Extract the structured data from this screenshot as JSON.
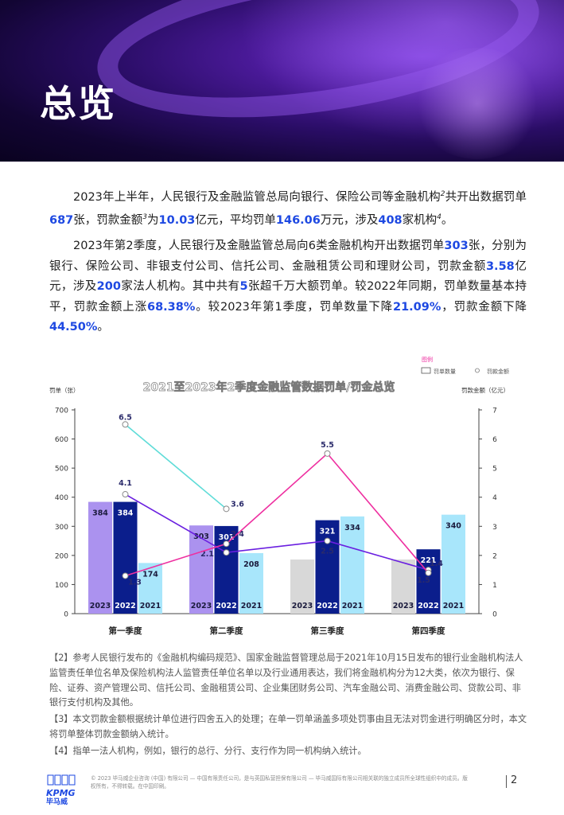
{
  "page": {
    "title": "总览",
    "page_number": "2"
  },
  "paragraph1": {
    "t1": "2023年上半年，人民银行及金融监管总局向银行、保险公司等金融机构",
    "sup2": "2",
    "t2": "共开出数据罚单",
    "v_tickets": "687",
    "t3": "张，罚款金额",
    "sup3": "3",
    "t4": "为",
    "v_amount": "10.03",
    "t5": "亿元，平均罚单",
    "v_avg": "146.06",
    "t6": "万元，涉及",
    "v_inst": "408",
    "t7": "家机构",
    "sup4": "4",
    "t8": "。"
  },
  "paragraph2": {
    "t1": "2023年第2季度，人民银行及金融监管总局向6类金融机构开出数据罚单",
    "v_tickets": "303",
    "t2": "张，分别为银行、保险公司、非银支付公司、信托公司、金融租赁公司和理财公司，罚款金额",
    "v_amount": "3.58",
    "t3": "亿元，涉及",
    "v_inst": "200",
    "t4": "家法人机构。其中共有",
    "v_big": "5",
    "t5": "张超千万大额罚单。较2022年同期，罚单数量基本持平，罚款金额上涨",
    "v_yoy": "68.38%",
    "t6": "。较2023年第1季度，罚单数量下降",
    "v_qoq_count": "21.09%",
    "t7": "，罚款金额下降",
    "v_qoq_amount": "44.50%",
    "t8": "。"
  },
  "chart_data": {
    "type": "bar",
    "title": "2021至2023年2季度金融监管数据罚单/罚金总览",
    "legend_title": "图例",
    "legend": {
      "bar": "罚单数量",
      "line": "罚款金额"
    },
    "ylabel": "罚单（张）",
    "y2label": "罚款金额（亿元）",
    "ylim": [
      0,
      700
    ],
    "y_ticks": [
      0,
      100,
      200,
      300,
      400,
      500,
      600,
      700
    ],
    "y2lim": [
      0,
      7
    ],
    "y2_ticks": [
      0,
      1,
      2,
      3,
      4,
      5,
      6,
      7
    ],
    "categories": [
      "第一季度",
      "第二季度",
      "第三季度",
      "第四季度"
    ],
    "series_order": [
      "2023",
      "2022",
      "2021"
    ],
    "series": [
      {
        "name": "2023",
        "color": "#ab92ef",
        "values": [
          384,
          303,
          186,
          186
        ],
        "value_labels": [
          "384",
          "303",
          "",
          ""
        ],
        "year_label_color": "#1a1a3c"
      },
      {
        "name": "2022",
        "color": "#0b1e8c",
        "values": [
          384,
          301,
          321,
          221
        ],
        "value_labels": [
          "384",
          "301",
          "321",
          "221"
        ],
        "year_label_color": "#ffffff"
      },
      {
        "name": "2021",
        "color": "#a8e6fb",
        "values": [
          174,
          208,
          334,
          340
        ],
        "value_labels": [
          "174",
          "208",
          "334",
          "340"
        ],
        "year_label_color": "#1a1a3c"
      }
    ],
    "placeholder_bar_color": "#d8d8d8",
    "placeholder_bars": [
      [
        false,
        false,
        false
      ],
      [
        false,
        false,
        false
      ],
      [
        true,
        false,
        false
      ],
      [
        true,
        false,
        false
      ]
    ],
    "lines": [
      {
        "name": "2023罚款金额",
        "color": "#5fdcd8",
        "points": [
          [
            0,
            6.5
          ],
          [
            1,
            3.6
          ]
        ],
        "labels": [
          "6.5",
          "3.6"
        ]
      },
      {
        "name": "2022罚款金额",
        "color": "#6a1fe0",
        "points": [
          [
            0,
            4.1
          ],
          [
            1,
            2.1
          ],
          [
            2,
            2.5
          ],
          [
            3,
            1.5
          ]
        ],
        "labels": [
          "4.1",
          "2.1",
          "2.5",
          "1.5"
        ]
      },
      {
        "name": "2021罚款金额",
        "color": "#ee2fa0",
        "points": [
          [
            0,
            1.3
          ],
          [
            1,
            2.4
          ],
          [
            2,
            5.5
          ],
          [
            3,
            1.4
          ]
        ],
        "labels": [
          "1.3",
          "2.4",
          "5.5",
          "1.4"
        ]
      }
    ]
  },
  "notes": [
    "【2】参考人民银行发布的《金融机构编码规范》、国家金融监督管理总局于2021年10月15日发布的银行业金融机构法人监管责任单位名单及保险机构法人监管责任单位名单以及行业通用表达，我们将金融机构分为12大类，依次为银行、保险、证券、资产管理公司、信托公司、金融租赁公司、企业集团财务公司、汽车金融公司、消费金融公司、贷款公司、非银行支付机构及其他。",
    "【3】本文罚款金额根据统计单位进行四舍五入的处理；在单一罚单涵盖多项处罚事由且无法对罚金进行明确区分时，本文将罚单整体罚款金额纳入统计。",
    "【4】指单一法人机构，例如，银行的总行、分行、支行作为同一机构纳入统计。"
  ],
  "footer": {
    "logo_text": "KPMG",
    "logo_cn": "毕马威",
    "copyright": "© 2023 毕马威企业咨询 (中国) 有限公司 — 中国有限责任公司，是与英国私营担保有限公司 — 毕马威国际有限公司相关联的独立成员所全球性组织中的成员。版权所有，不得转载。在中国印刷。"
  },
  "colors": {
    "accent_blue": "#1e49e2",
    "hero_purple": "#4b1a9a"
  }
}
